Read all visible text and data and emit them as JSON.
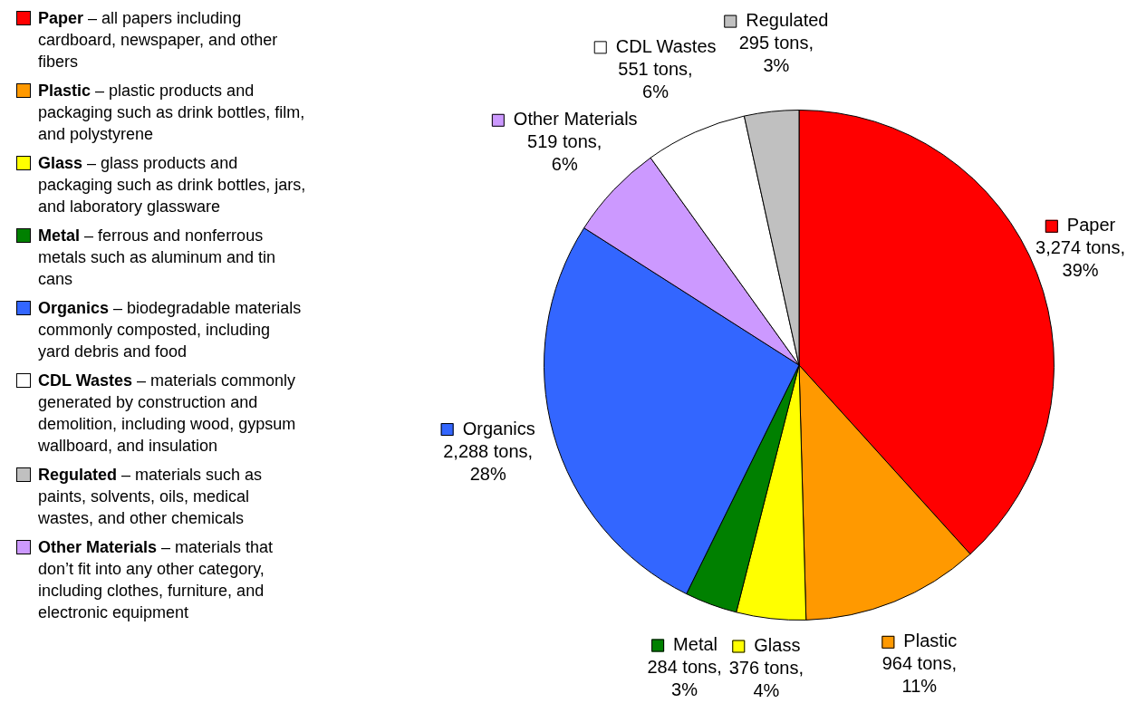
{
  "chart_data": {
    "type": "pie",
    "categories": [
      "Paper",
      "Plastic",
      "Glass",
      "Metal",
      "Organics",
      "Other Materials",
      "CDL Wastes",
      "Regulated"
    ],
    "values": [
      3274,
      964,
      376,
      284,
      2288,
      519,
      551,
      295
    ],
    "colors": [
      "#ff0000",
      "#ff9900",
      "#ffff00",
      "#008000",
      "#3366ff",
      "#cc99ff",
      "#ffffff",
      "#c0c0c0"
    ],
    "value_labels": [
      "3,274 tons, 39%",
      "964 tons, 11%",
      "376 tons, 4%",
      "284 tons, 3%",
      "2,288 tons, 28%",
      "519 tons, 6%",
      "551 tons, 6%",
      "295 tons, 3%"
    ],
    "legend": "left",
    "annotations": [
      {
        "text": "Paper – all papers including cardboard, newspaper, and other fibers",
        "x": "Paper"
      },
      {
        "text": "Plastic – plastic products and packaging such as drink bottles, film, and polystyrene",
        "x": "Plastic"
      },
      {
        "text": "Glass – glass products and packaging such as drink bottles, jars, and laboratory glassware",
        "x": "Glass"
      },
      {
        "text": "Metal – ferrous and nonferrous metals such as aluminum and tin cans",
        "x": "Metal"
      },
      {
        "text": "Organics – biodegradable materials commonly composted, including yard debris and food",
        "x": "Organics"
      },
      {
        "text": "CDL Wastes – materials commonly generated by construction and demolition, including wood, gypsum wallboard, and insulation",
        "x": "CDL Wastes"
      },
      {
        "text": "Regulated – materials such as paints, solvents, oils, medical wastes, and other chemicals",
        "x": "Regulated"
      },
      {
        "text": "Other Materials – materials that don’t fit into any other category, including clothes, furniture, and electronic equipment",
        "x": "Other Materials"
      }
    ]
  }
}
